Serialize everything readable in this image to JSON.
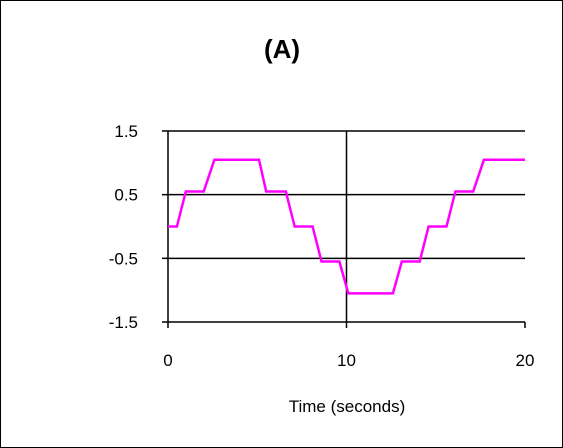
{
  "chart_data": {
    "type": "line",
    "title": "(A)",
    "xlabel": "Time (seconds)",
    "ylabel": "",
    "xlim": [
      0,
      20
    ],
    "ylim": [
      -1.5,
      1.5
    ],
    "x_ticks": [
      0,
      10,
      20
    ],
    "x_tick_labels": [
      "0",
      "10",
      "20"
    ],
    "y_ticks": [
      -1.5,
      -0.5,
      0.5,
      1.5
    ],
    "y_tick_labels": [
      "-1.5",
      "-0.5",
      "0.5",
      "1.5"
    ],
    "grid": "horizontal gridlines at y ticks",
    "line_color": "#ff00ff",
    "series": [
      {
        "x": [
          0,
          0.5,
          1.0,
          2.0,
          2.6,
          5.1,
          5.5,
          6.6,
          7.1,
          8.1,
          8.6,
          9.6,
          10.1,
          12.6,
          13.1,
          14.1,
          14.6,
          15.6,
          16.1,
          17.1,
          17.7,
          20
        ],
        "y": [
          0,
          0,
          0.55,
          0.55,
          1.05,
          1.05,
          0.55,
          0.55,
          0,
          0,
          -0.55,
          -0.55,
          -1.05,
          -1.05,
          -0.55,
          -0.55,
          0,
          0,
          0.55,
          0.55,
          1.05,
          1.05
        ]
      }
    ]
  }
}
